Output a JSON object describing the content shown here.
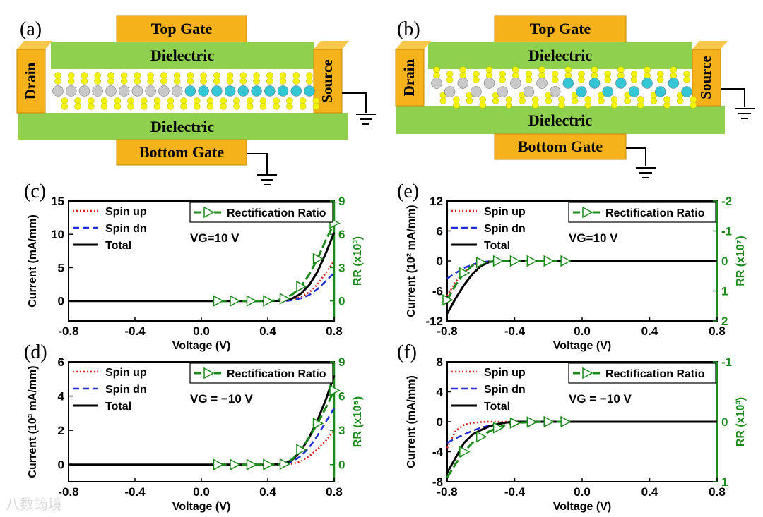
{
  "colors": {
    "gate": "#f5b21a",
    "gate_dark": "#c98a0a",
    "dielectric": "#8fd14f",
    "spin_up": "#e0201b",
    "spin_dn": "#1f2fd6",
    "total": "#000000",
    "rr": "#1a8a1a",
    "sulfur": "#f2f20a",
    "metal_a": "#c9c9c9",
    "metal_b": "#35c6d6"
  },
  "watermark": "八数筠境",
  "devices": [
    {
      "label": "(a)",
      "top_gate": "Top Gate",
      "dielectric_top": "Dielectric",
      "dielectric_bottom": "Dielectric",
      "bottom_gate": "Bottom Gate",
      "drain": "Drain",
      "source": "Source"
    },
    {
      "label": "(b)",
      "top_gate": "Top Gate",
      "dielectric_top": "Dielectric",
      "dielectric_bottom": "Dielectric",
      "bottom_gate": "Bottom Gate",
      "drain": "Drain",
      "source": "Source"
    }
  ],
  "chart_data": [
    {
      "panel": "(c)",
      "type": "line",
      "xlabel": "Voltage (V)",
      "ylabel": "Current (mA/mm)",
      "y2label": "RR (x10³)",
      "xlim": [
        -0.8,
        0.8
      ],
      "ylim": [
        -3,
        15
      ],
      "y2lim": [
        -1.8,
        9
      ],
      "xticks": [
        "-0.8",
        "-0.4",
        "0.0",
        "0.4",
        "0.8"
      ],
      "xtick_values": [
        -0.8,
        -0.4,
        0.0,
        0.4,
        0.8
      ],
      "yticks": [
        "0",
        "5",
        "10",
        "15"
      ],
      "ytick_values": [
        0,
        5,
        10,
        15
      ],
      "y2ticks": [
        "0",
        "3",
        "6",
        "9"
      ],
      "y2tick_values": [
        0,
        3,
        6,
        9
      ],
      "annotation": "VG=10 V",
      "legend": [
        "Spin up",
        "Spin dn",
        "Total"
      ],
      "rr_legend": "Rectification Ratio",
      "x": [
        -0.8,
        -0.7,
        -0.6,
        -0.5,
        -0.4,
        -0.3,
        -0.2,
        -0.1,
        0.0,
        0.1,
        0.2,
        0.3,
        0.4,
        0.5,
        0.55,
        0.6,
        0.65,
        0.7,
        0.75,
        0.8
      ],
      "series": [
        {
          "name": "Spin up",
          "values": [
            0,
            0,
            0,
            0,
            0,
            0,
            0,
            0,
            0,
            0,
            0,
            0,
            0,
            0,
            0.2,
            0.6,
            1.3,
            2.5,
            4.2,
            6.0
          ]
        },
        {
          "name": "Spin dn",
          "values": [
            0,
            0,
            0,
            0,
            0,
            0,
            0,
            0,
            0,
            0,
            0,
            0,
            0,
            0,
            0.1,
            0.4,
            0.9,
            1.8,
            3.0,
            4.2
          ]
        },
        {
          "name": "Total",
          "values": [
            0,
            0,
            0,
            0,
            0,
            0,
            0,
            0,
            0,
            0,
            0,
            0,
            0,
            0.05,
            0.4,
            1.1,
            2.4,
            4.4,
            7.2,
            10.3
          ]
        }
      ],
      "rr": {
        "x": [
          0.1,
          0.2,
          0.3,
          0.4,
          0.45,
          0.5,
          0.55,
          0.6,
          0.65,
          0.7,
          0.75,
          0.8
        ],
        "values": [
          0,
          0,
          0,
          0,
          0.05,
          0.2,
          0.6,
          1.3,
          2.4,
          3.8,
          5.5,
          7.0
        ],
        "markers_x": [
          0.1,
          0.2,
          0.3,
          0.4,
          0.5,
          0.6,
          0.7,
          0.8
        ]
      }
    },
    {
      "panel": "(d)",
      "type": "line",
      "xlabel": "Voltage (V)",
      "ylabel": "Current (10³ mA/mm)",
      "y2label": "RR (x10⁵)",
      "xlim": [
        -0.8,
        0.8
      ],
      "ylim": [
        -1,
        6
      ],
      "y2lim": [
        -1.5,
        9
      ],
      "xticks": [
        "-0.8",
        "-0.4",
        "0.0",
        "0.4",
        "0.8"
      ],
      "xtick_values": [
        -0.8,
        -0.4,
        0.0,
        0.4,
        0.8
      ],
      "yticks": [
        "0",
        "2",
        "4",
        "6"
      ],
      "ytick_values": [
        0,
        2,
        4,
        6
      ],
      "y2ticks": [
        "0",
        "3",
        "6",
        "9"
      ],
      "y2tick_values": [
        0,
        3,
        6,
        9
      ],
      "annotation": "VG = −10 V",
      "legend": [
        "Spin up",
        "Spin dn",
        "Total"
      ],
      "rr_legend": "Rectification Ratio",
      "x": [
        -0.8,
        -0.6,
        -0.4,
        -0.2,
        0.0,
        0.2,
        0.4,
        0.5,
        0.55,
        0.6,
        0.65,
        0.7,
        0.75,
        0.8
      ],
      "series": [
        {
          "name": "Spin up",
          "values": [
            0,
            0,
            0,
            0,
            0,
            0,
            0,
            0,
            0.05,
            0.2,
            0.5,
            0.9,
            1.4,
            2.0
          ]
        },
        {
          "name": "Spin dn",
          "values": [
            0,
            0,
            0,
            0,
            0,
            0,
            0,
            0.02,
            0.2,
            0.5,
            1.0,
            1.7,
            2.5,
            3.3
          ]
        },
        {
          "name": "Total",
          "values": [
            0,
            0,
            0,
            0,
            0,
            0,
            0,
            0.05,
            0.3,
            0.8,
            1.6,
            2.6,
            3.8,
            5.2
          ]
        }
      ],
      "rr": {
        "x": [
          0.1,
          0.2,
          0.3,
          0.4,
          0.5,
          0.55,
          0.6,
          0.65,
          0.7,
          0.75,
          0.8
        ],
        "values": [
          0,
          0,
          0,
          0,
          0.05,
          0.5,
          1.3,
          2.4,
          3.6,
          5.0,
          6.5
        ],
        "markers_x": [
          0.1,
          0.2,
          0.3,
          0.4,
          0.5,
          0.6,
          0.7,
          0.8
        ]
      }
    },
    {
      "panel": "(e)",
      "type": "line",
      "xlabel": "Voltage (V)",
      "ylabel": "Current (10² mA/mm)",
      "y2label": "RR (x10⁷)",
      "xlim": [
        -0.8,
        0.8
      ],
      "ylim": [
        -12,
        12
      ],
      "y2lim": [
        2,
        -2
      ],
      "xticks": [
        "-0.8",
        "-0.4",
        "0.0",
        "0.4",
        "0.8"
      ],
      "xtick_values": [
        -0.8,
        -0.4,
        0.0,
        0.4,
        0.8
      ],
      "yticks": [
        "-12",
        "-6",
        "0",
        "6",
        "12"
      ],
      "ytick_values": [
        -12,
        -6,
        0,
        6,
        12
      ],
      "y2ticks": [
        "2",
        "1",
        "0",
        "-1",
        "-2"
      ],
      "y2tick_values": [
        2,
        1,
        0,
        -1,
        -2
      ],
      "annotation": "VG=10 V",
      "legend": [
        "Spin up",
        "Spin dn",
        "Total"
      ],
      "rr_legend": "Rectification Ratio",
      "x": [
        -0.8,
        -0.75,
        -0.7,
        -0.65,
        -0.6,
        -0.55,
        -0.5,
        -0.4,
        -0.2,
        0.0,
        0.2,
        0.4,
        0.6,
        0.8
      ],
      "series": [
        {
          "name": "Spin up",
          "values": [
            -7.0,
            -4.2,
            -2.2,
            -0.9,
            -0.3,
            -0.05,
            0,
            0,
            0,
            0,
            0,
            0,
            0,
            0
          ]
        },
        {
          "name": "Spin dn",
          "values": [
            -3.5,
            -2.4,
            -1.4,
            -0.7,
            -0.25,
            -0.05,
            0,
            0,
            0,
            0,
            0,
            0,
            0,
            0
          ]
        },
        {
          "name": "Total",
          "values": [
            -10.5,
            -7.5,
            -4.8,
            -2.6,
            -1.0,
            -0.2,
            0,
            0,
            0,
            0,
            0,
            0,
            0,
            0
          ]
        }
      ],
      "rr": {
        "x": [
          -0.8,
          -0.75,
          -0.7,
          -0.65,
          -0.6,
          -0.5,
          -0.4,
          -0.3,
          -0.2,
          -0.1
        ],
        "values": [
          1.3,
          0.8,
          0.4,
          0.15,
          0.05,
          0,
          0,
          0,
          0,
          0
        ],
        "markers_x": [
          -0.8,
          -0.7,
          -0.6,
          -0.5,
          -0.4,
          -0.3,
          -0.2,
          -0.1
        ]
      }
    },
    {
      "panel": "(f)",
      "type": "line",
      "xlabel": "Voltage (V)",
      "ylabel": "Current (mA/mm)",
      "y2label": "RR (x10³)",
      "xlim": [
        -0.8,
        0.8
      ],
      "ylim": [
        -8,
        8
      ],
      "y2lim": [
        1,
        -1
      ],
      "xticks": [
        "-0.8",
        "-0.4",
        "0.0",
        "0.4",
        "0.8"
      ],
      "xtick_values": [
        -0.8,
        -0.4,
        0.0,
        0.4,
        0.8
      ],
      "yticks": [
        "-8",
        "-4",
        "0",
        "4",
        "8"
      ],
      "ytick_values": [
        -8,
        -4,
        0,
        4,
        8
      ],
      "y2ticks": [
        "1",
        "0",
        "-1"
      ],
      "y2tick_values": [
        1,
        0,
        -1
      ],
      "annotation": "VG = −10 V",
      "legend": [
        "Spin up",
        "Spin dn",
        "Total"
      ],
      "rr_legend": "Rectification Ratio",
      "x": [
        -0.8,
        -0.75,
        -0.7,
        -0.65,
        -0.6,
        -0.55,
        -0.5,
        -0.45,
        -0.4,
        -0.2,
        0.0,
        0.2,
        0.4,
        0.6,
        0.8
      ],
      "series": [
        {
          "name": "Spin up",
          "values": [
            -3.5,
            -1.2,
            -0.4,
            -0.15,
            -0.05,
            0,
            0,
            0,
            0,
            0,
            0,
            0,
            0,
            0,
            0
          ]
        },
        {
          "name": "Spin dn",
          "values": [
            -2.8,
            -2.2,
            -1.7,
            -1.2,
            -0.8,
            -0.5,
            -0.3,
            -0.1,
            0,
            0,
            0,
            0,
            0,
            0,
            0
          ]
        },
        {
          "name": "Total",
          "values": [
            -6.8,
            -4.8,
            -2.8,
            -1.7,
            -1.1,
            -0.6,
            -0.3,
            -0.1,
            0,
            0,
            0,
            0,
            0,
            0,
            0
          ]
        }
      ],
      "rr": {
        "x": [
          -0.8,
          -0.75,
          -0.7,
          -0.65,
          -0.6,
          -0.55,
          -0.5,
          -0.45,
          -0.4,
          -0.3,
          -0.2,
          -0.1
        ],
        "values": [
          0.93,
          0.7,
          0.5,
          0.35,
          0.25,
          0.16,
          0.1,
          0.05,
          0.02,
          0.005,
          0,
          0
        ],
        "markers_x": [
          -0.7,
          -0.6,
          -0.5,
          -0.4,
          -0.3,
          -0.2,
          -0.1
        ]
      }
    }
  ]
}
